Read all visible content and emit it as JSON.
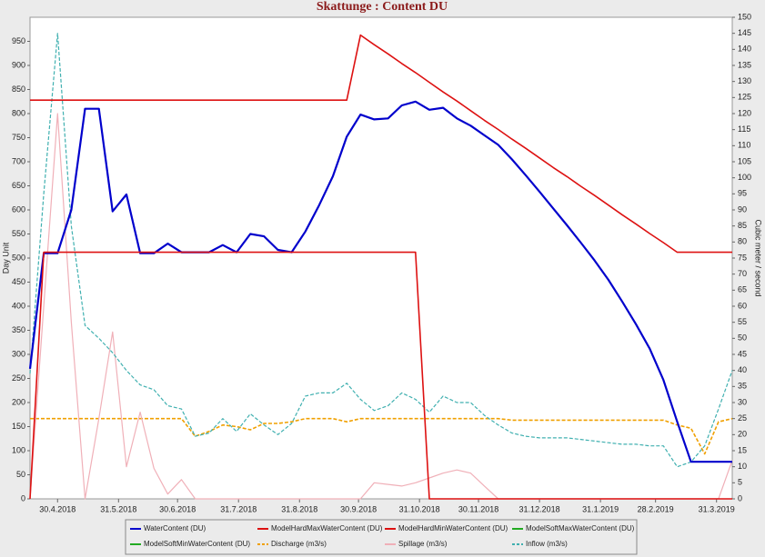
{
  "chart_data": {
    "type": "line",
    "title": "Skattunge : Content DU",
    "ylabel": "Day Unit",
    "y2label": "Cubic meter / second",
    "x": [
      "2018-04-16",
      "2018-04-23",
      "2018-04-30",
      "2018-05-07",
      "2018-05-14",
      "2018-05-21",
      "2018-05-28",
      "2018-06-04",
      "2018-06-11",
      "2018-06-18",
      "2018-06-25",
      "2018-07-02",
      "2018-07-09",
      "2018-07-16",
      "2018-07-23",
      "2018-07-30",
      "2018-08-06",
      "2018-08-13",
      "2018-08-20",
      "2018-08-27",
      "2018-09-03",
      "2018-09-10",
      "2018-09-17",
      "2018-09-24",
      "2018-10-01",
      "2018-10-08",
      "2018-10-15",
      "2018-10-22",
      "2018-10-29",
      "2018-11-05",
      "2018-11-12",
      "2018-11-19",
      "2018-11-26",
      "2018-12-03",
      "2018-12-10",
      "2018-12-17",
      "2018-12-24",
      "2018-12-31",
      "2019-01-07",
      "2019-01-14",
      "2019-01-21",
      "2019-01-28",
      "2019-02-04",
      "2019-02-11",
      "2019-02-18",
      "2019-02-25",
      "2019-03-04",
      "2019-03-11",
      "2019-03-18",
      "2019-03-25",
      "2019-04-01",
      "2019-04-08"
    ],
    "xlim": [
      "2018-04-16",
      "2019-04-08"
    ],
    "xticks": [
      {
        "value": "2018-04-30",
        "label": "30.4.2018"
      },
      {
        "value": "2018-05-31",
        "label": "31.5.2018"
      },
      {
        "value": "2018-06-30",
        "label": "30.6.2018"
      },
      {
        "value": "2018-07-31",
        "label": "31.7.2018"
      },
      {
        "value": "2018-08-31",
        "label": "31.8.2018"
      },
      {
        "value": "2018-09-30",
        "label": "30.9.2018"
      },
      {
        "value": "2018-10-31",
        "label": "31.10.2018"
      },
      {
        "value": "2018-11-30",
        "label": "30.11.2018"
      },
      {
        "value": "2018-12-31",
        "label": "31.12.2018"
      },
      {
        "value": "2019-01-31",
        "label": "31.1.2019"
      },
      {
        "value": "2019-02-28",
        "label": "28.2.2019"
      },
      {
        "value": "2019-03-31",
        "label": "31.3.2019"
      }
    ],
    "ylim": [
      0,
      1000
    ],
    "yticks": [
      0,
      50,
      100,
      150,
      200,
      250,
      300,
      350,
      400,
      450,
      500,
      550,
      600,
      650,
      700,
      750,
      800,
      850,
      900,
      950
    ],
    "y2lim": [
      0,
      150
    ],
    "y2ticks": [
      0,
      5,
      10,
      15,
      20,
      25,
      30,
      35,
      40,
      45,
      50,
      55,
      60,
      65,
      70,
      75,
      80,
      85,
      90,
      95,
      100,
      105,
      110,
      115,
      120,
      125,
      130,
      135,
      140,
      145,
      150
    ],
    "series": [
      {
        "name": "WaterContent (DU)",
        "color": "#0000cc",
        "line_width": 2.2,
        "dashed": false,
        "values": [
          270,
          510,
          510,
          600,
          810,
          810,
          597,
          632,
          510,
          510,
          530,
          512,
          512,
          512,
          527,
          512,
          550,
          545,
          517,
          512,
          555,
          610,
          670,
          752,
          798,
          788,
          790,
          817,
          825,
          808,
          812,
          790,
          775,
          755,
          735,
          705,
          672,
          638,
          603,
          568,
          532,
          495,
          455,
          410,
          363,
          312,
          247,
          160,
          77,
          77,
          77,
          77
        ]
      },
      {
        "name": "ModelHardMaxWaterContent (DU)",
        "color": "#dd1111",
        "line_width": 1.6,
        "dashed": false,
        "values": [
          828,
          828,
          828,
          828,
          828,
          828,
          828,
          828,
          828,
          828,
          828,
          828,
          828,
          828,
          828,
          828,
          828,
          828,
          828,
          828,
          828,
          828,
          828,
          828,
          963,
          943,
          924,
          904,
          885,
          865,
          845,
          826,
          806,
          786,
          767,
          747,
          728,
          708,
          688,
          669,
          649,
          630,
          610,
          590,
          571,
          551,
          532,
          512,
          512,
          512,
          512,
          512
        ]
      },
      {
        "name": "ModelHardMinWaterContent (DU)",
        "color": "#dd1111",
        "line_width": 1.6,
        "dashed": false,
        "values": [
          0,
          512,
          512,
          512,
          512,
          512,
          512,
          512,
          512,
          512,
          512,
          512,
          512,
          512,
          512,
          512,
          512,
          512,
          512,
          512,
          512,
          512,
          512,
          512,
          512,
          512,
          512,
          512,
          512,
          0,
          0,
          0,
          0,
          0,
          0,
          0,
          0,
          0,
          0,
          0,
          0,
          0,
          0,
          0,
          0,
          0,
          0,
          0,
          0,
          0,
          0,
          0
        ]
      },
      {
        "name": "ModelSoftMaxWaterContent (DU)",
        "color": "#22aa22",
        "line_width": 1.6,
        "dashed": false,
        "values": [
          null,
          null,
          null,
          null,
          null,
          null,
          null,
          null,
          null,
          null,
          null,
          null,
          null,
          null,
          null,
          null,
          null,
          null,
          null,
          null,
          null,
          null,
          null,
          null,
          null,
          null,
          null,
          null,
          null,
          null,
          null,
          null,
          null,
          null,
          null,
          null,
          null,
          null,
          null,
          null,
          null,
          null,
          null,
          null,
          null,
          null,
          null,
          null,
          null,
          null,
          null,
          null
        ]
      },
      {
        "name": "ModelSoftMinWaterContent (DU)",
        "color": "#22aa22",
        "line_width": 1.6,
        "dashed": false,
        "values": [
          null,
          null,
          null,
          null,
          null,
          null,
          null,
          null,
          null,
          null,
          null,
          null,
          null,
          null,
          null,
          null,
          null,
          null,
          null,
          null,
          null,
          null,
          null,
          null,
          null,
          null,
          null,
          null,
          null,
          null,
          null,
          null,
          null,
          null,
          null,
          null,
          null,
          null,
          null,
          null,
          null,
          null,
          null,
          null,
          null,
          null,
          null,
          null,
          null,
          null,
          null,
          null
        ]
      },
      {
        "name": "Discharge (m3/s)",
        "color": "#f0a000",
        "line_width": 1.6,
        "dashed": true,
        "axis": "y2",
        "values": [
          25,
          25,
          25,
          25,
          25,
          25,
          25,
          25,
          25,
          25,
          25,
          25,
          19.5,
          21,
          23,
          22.5,
          21.5,
          23.5,
          23.5,
          24,
          25,
          25,
          25,
          24,
          25,
          25,
          25,
          25,
          25,
          25,
          25,
          25,
          25,
          25,
          25,
          24.5,
          24.5,
          24.5,
          24.5,
          24.5,
          24.5,
          24.5,
          24.5,
          24.5,
          24.5,
          24.5,
          24.5,
          23,
          22,
          14,
          24,
          25
        ]
      },
      {
        "name": "Spillage (m3/s)",
        "color": "#f0b0b8",
        "line_width": 1.2,
        "dashed": false,
        "axis": "y2",
        "values": [
          0,
          60,
          120,
          55,
          0,
          25,
          52,
          10,
          27,
          9.5,
          1.5,
          6,
          0,
          0,
          0,
          0,
          0,
          0,
          0,
          0,
          0,
          0,
          0,
          0,
          0,
          5,
          4.5,
          4,
          5,
          6.5,
          8,
          9,
          8,
          4,
          0,
          0,
          0,
          0,
          0,
          0,
          0,
          0,
          0,
          0,
          0,
          0,
          0,
          0,
          0,
          0,
          0,
          12
        ]
      },
      {
        "name": "Inflow (m3/s)",
        "color": "#40b0b0",
        "line_width": 1.2,
        "dashed": true,
        "axis": "y2",
        "values": [
          39,
          95,
          145,
          85,
          54,
          50,
          45.5,
          40,
          35.5,
          34,
          29,
          28,
          19.5,
          20.5,
          25,
          21,
          26.5,
          23,
          20,
          23.5,
          32,
          33,
          33,
          36,
          31,
          27.5,
          29,
          33,
          31,
          27,
          32,
          30,
          30,
          26,
          23,
          20.5,
          19.5,
          19,
          19,
          19,
          18.5,
          18,
          17.5,
          17,
          17,
          16.5,
          16.5,
          10,
          11.5,
          16.5,
          28,
          40
        ]
      }
    ]
  }
}
